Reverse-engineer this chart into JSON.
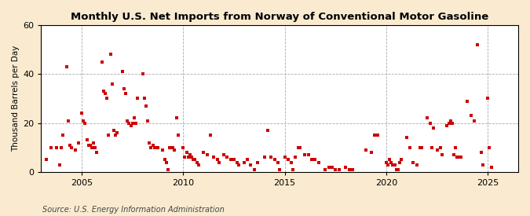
{
  "title": "Monthly U.S. Net Imports from Norway of Conventional Motor Gasoline",
  "ylabel": "Thousand Barrels per Day",
  "source": "Source: U.S. Energy Information Administration",
  "fig_background_color": "#faebd0",
  "plot_background_color": "#ffffff",
  "marker_color": "#cc0000",
  "xlim": [
    2003.0,
    2026.5
  ],
  "ylim": [
    0,
    60
  ],
  "yticks": [
    0,
    20,
    40,
    60
  ],
  "xticks": [
    2005,
    2010,
    2015,
    2020,
    2025
  ],
  "data": [
    [
      2003.25,
      5
    ],
    [
      2003.5,
      10
    ],
    [
      2003.75,
      10
    ],
    [
      2003.92,
      3
    ],
    [
      2004.0,
      10
    ],
    [
      2004.08,
      15
    ],
    [
      2004.25,
      43
    ],
    [
      2004.33,
      21
    ],
    [
      2004.42,
      11
    ],
    [
      2004.5,
      10
    ],
    [
      2004.67,
      9
    ],
    [
      2004.83,
      12
    ],
    [
      2005.0,
      24
    ],
    [
      2005.08,
      21
    ],
    [
      2005.17,
      20
    ],
    [
      2005.25,
      13
    ],
    [
      2005.33,
      11
    ],
    [
      2005.42,
      11
    ],
    [
      2005.5,
      10
    ],
    [
      2005.58,
      12
    ],
    [
      2005.67,
      10
    ],
    [
      2005.75,
      8
    ],
    [
      2006.0,
      45
    ],
    [
      2006.08,
      33
    ],
    [
      2006.17,
      32
    ],
    [
      2006.25,
      30
    ],
    [
      2006.33,
      15
    ],
    [
      2006.42,
      48
    ],
    [
      2006.5,
      36
    ],
    [
      2006.58,
      17
    ],
    [
      2006.67,
      15
    ],
    [
      2006.75,
      16
    ],
    [
      2007.0,
      41
    ],
    [
      2007.08,
      34
    ],
    [
      2007.17,
      32
    ],
    [
      2007.25,
      21
    ],
    [
      2007.33,
      20
    ],
    [
      2007.42,
      19
    ],
    [
      2007.5,
      20
    ],
    [
      2007.58,
      22
    ],
    [
      2007.67,
      20
    ],
    [
      2007.75,
      30
    ],
    [
      2008.0,
      40
    ],
    [
      2008.08,
      30
    ],
    [
      2008.17,
      27
    ],
    [
      2008.25,
      21
    ],
    [
      2008.33,
      12
    ],
    [
      2008.42,
      10
    ],
    [
      2008.5,
      11
    ],
    [
      2008.58,
      10
    ],
    [
      2008.67,
      10
    ],
    [
      2008.75,
      10
    ],
    [
      2009.0,
      9
    ],
    [
      2009.08,
      5
    ],
    [
      2009.17,
      4
    ],
    [
      2009.25,
      1
    ],
    [
      2009.33,
      10
    ],
    [
      2009.42,
      10
    ],
    [
      2009.5,
      10
    ],
    [
      2009.58,
      9
    ],
    [
      2009.67,
      22
    ],
    [
      2009.75,
      15
    ],
    [
      2010.0,
      10
    ],
    [
      2010.08,
      6
    ],
    [
      2010.17,
      8
    ],
    [
      2010.25,
      6
    ],
    [
      2010.33,
      7
    ],
    [
      2010.42,
      6
    ],
    [
      2010.5,
      5
    ],
    [
      2010.58,
      5
    ],
    [
      2010.67,
      4
    ],
    [
      2010.75,
      3
    ],
    [
      2011.0,
      8
    ],
    [
      2011.17,
      7
    ],
    [
      2011.33,
      15
    ],
    [
      2011.5,
      6
    ],
    [
      2011.67,
      5
    ],
    [
      2011.75,
      4
    ],
    [
      2012.0,
      7
    ],
    [
      2012.17,
      6
    ],
    [
      2012.33,
      5
    ],
    [
      2012.5,
      5
    ],
    [
      2012.67,
      4
    ],
    [
      2012.75,
      3
    ],
    [
      2013.0,
      4
    ],
    [
      2013.17,
      5
    ],
    [
      2013.33,
      3
    ],
    [
      2013.5,
      1
    ],
    [
      2013.67,
      4
    ],
    [
      2014.0,
      6
    ],
    [
      2014.17,
      17
    ],
    [
      2014.33,
      6
    ],
    [
      2014.5,
      5
    ],
    [
      2014.67,
      4
    ],
    [
      2014.75,
      1
    ],
    [
      2015.0,
      6
    ],
    [
      2015.17,
      5
    ],
    [
      2015.33,
      4
    ],
    [
      2015.42,
      1
    ],
    [
      2015.5,
      6
    ],
    [
      2015.67,
      10
    ],
    [
      2015.75,
      10
    ],
    [
      2016.0,
      7
    ],
    [
      2016.17,
      7
    ],
    [
      2016.33,
      5
    ],
    [
      2016.5,
      5
    ],
    [
      2016.67,
      4
    ],
    [
      2017.0,
      1
    ],
    [
      2017.17,
      2
    ],
    [
      2017.33,
      2
    ],
    [
      2017.5,
      1
    ],
    [
      2017.67,
      1
    ],
    [
      2018.0,
      2
    ],
    [
      2018.17,
      1
    ],
    [
      2018.33,
      1
    ],
    [
      2019.0,
      9
    ],
    [
      2019.25,
      8
    ],
    [
      2019.42,
      15
    ],
    [
      2019.58,
      15
    ],
    [
      2020.0,
      4
    ],
    [
      2020.08,
      3
    ],
    [
      2020.17,
      5
    ],
    [
      2020.25,
      4
    ],
    [
      2020.33,
      3
    ],
    [
      2020.42,
      3
    ],
    [
      2020.5,
      1
    ],
    [
      2020.58,
      1
    ],
    [
      2020.67,
      4
    ],
    [
      2020.75,
      5
    ],
    [
      2021.0,
      14
    ],
    [
      2021.17,
      10
    ],
    [
      2021.33,
      4
    ],
    [
      2021.5,
      3
    ],
    [
      2021.67,
      10
    ],
    [
      2021.75,
      10
    ],
    [
      2022.0,
      22
    ],
    [
      2022.17,
      20
    ],
    [
      2022.25,
      10
    ],
    [
      2022.33,
      18
    ],
    [
      2022.5,
      9
    ],
    [
      2022.67,
      10
    ],
    [
      2022.75,
      7
    ],
    [
      2023.0,
      19
    ],
    [
      2023.08,
      20
    ],
    [
      2023.17,
      21
    ],
    [
      2023.25,
      20
    ],
    [
      2023.33,
      7
    ],
    [
      2023.42,
      10
    ],
    [
      2023.5,
      6
    ],
    [
      2023.58,
      6
    ],
    [
      2023.67,
      6
    ],
    [
      2024.0,
      29
    ],
    [
      2024.17,
      23
    ],
    [
      2024.33,
      21
    ],
    [
      2024.5,
      52
    ],
    [
      2024.67,
      8
    ],
    [
      2024.75,
      3
    ],
    [
      2025.0,
      30
    ],
    [
      2025.08,
      10
    ],
    [
      2025.17,
      2
    ]
  ]
}
